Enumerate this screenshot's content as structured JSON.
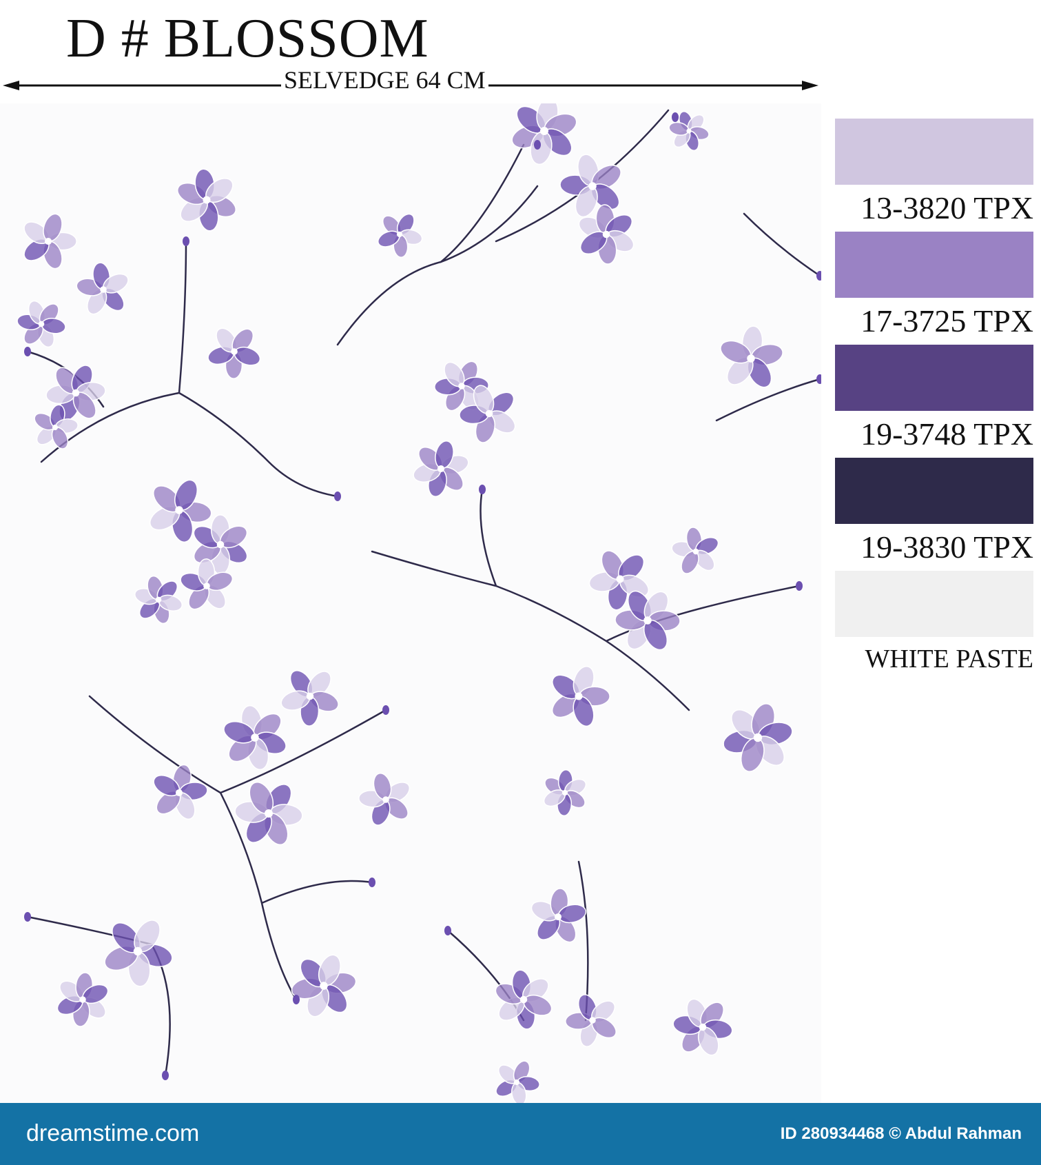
{
  "header": {
    "title": "D # BLOSSOM",
    "selvedge_label": "SELVEDGE 64 CM"
  },
  "palette": [
    {
      "color": "#d0c6e0",
      "label": "13-3820 TPX"
    },
    {
      "color": "#9a82c4",
      "label": "17-3725 TPX"
    },
    {
      "color": "#574283",
      "label": "19-3748 TPX"
    },
    {
      "color": "#2e2a4a",
      "label": "19-3830 TPX"
    },
    {
      "color": "#f0f0f0",
      "label": "WHITE PASTE"
    }
  ],
  "footer": {
    "brand": "dreamstime.com",
    "stock_id": "ID 280934468 © Abdul Rahman",
    "bar_color": "#1472a5"
  },
  "design": {
    "branch_color": "#2e2a4a",
    "petal_light": "#d7cee8",
    "petal_mid": "#9a82c4",
    "petal_dark": "#6b4fb0"
  }
}
